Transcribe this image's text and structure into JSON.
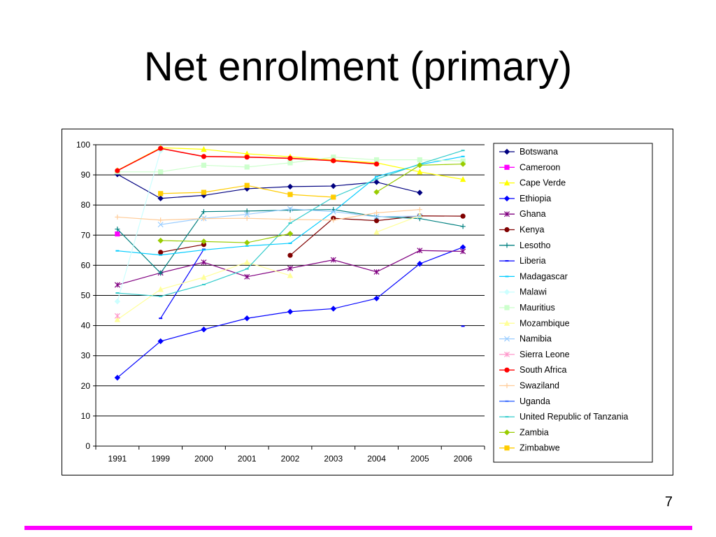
{
  "slide": {
    "title": "Net enrolment (primary)",
    "page_number": "7",
    "footer_color": "#ff00ff"
  },
  "chart_data": {
    "type": "line",
    "title": "",
    "xlabel": "",
    "ylabel": "",
    "ylim": [
      0,
      100
    ],
    "yticks": [
      0,
      10,
      20,
      30,
      40,
      50,
      60,
      70,
      80,
      90,
      100
    ],
    "grid": "horizontal",
    "legend_position": "right",
    "categories": [
      "1991",
      "1999",
      "2000",
      "2001",
      "2002",
      "2003",
      "2004",
      "2005",
      "2006"
    ],
    "series": [
      {
        "name": "Botswana",
        "color": "#000080",
        "marker": "diamond",
        "values": [
          90.2,
          82.2,
          83.2,
          85.4,
          86.1,
          86.3,
          87.6,
          84.1,
          null
        ]
      },
      {
        "name": "Cameroon",
        "color": "#ff00ff",
        "marker": "square",
        "values": [
          70.4,
          null,
          null,
          null,
          null,
          null,
          null,
          null,
          null
        ]
      },
      {
        "name": "Cape Verde",
        "color": "#ffff00",
        "marker": "triangle",
        "values": [
          91.5,
          99.0,
          98.5,
          97.0,
          96.0,
          95.0,
          94.0,
          91.0,
          88.5
        ]
      },
      {
        "name": "Ethiopia",
        "color": "#0000ff",
        "marker": "diamond",
        "values": [
          22.7,
          34.8,
          38.7,
          42.4,
          44.6,
          45.6,
          49.0,
          60.5,
          66.0
        ]
      },
      {
        "name": "Ghana",
        "color": "#800080",
        "marker": "star",
        "values": [
          53.5,
          57.5,
          61.0,
          56.2,
          59.0,
          61.8,
          57.8,
          64.9,
          64.6
        ]
      },
      {
        "name": "Kenya",
        "color": "#800000",
        "marker": "circle",
        "values": [
          null,
          64.3,
          66.9,
          null,
          63.3,
          75.6,
          74.8,
          76.4,
          76.3
        ]
      },
      {
        "name": "Lesotho",
        "color": "#008080",
        "marker": "plus",
        "values": [
          72.0,
          57.4,
          77.8,
          78.0,
          78.3,
          78.5,
          76.2,
          75.5,
          72.9
        ]
      },
      {
        "name": "Liberia",
        "color": "#0000ff",
        "marker": "dash",
        "values": [
          null,
          42.4,
          65.3,
          null,
          null,
          null,
          null,
          null,
          39.8
        ]
      },
      {
        "name": "Madagascar",
        "color": "#00ccff",
        "marker": "dash",
        "values": [
          64.8,
          63.4,
          65.1,
          66.4,
          67.3,
          77.8,
          89.4,
          93.4,
          96.1
        ]
      },
      {
        "name": "Malawi",
        "color": "#ccffff",
        "marker": "diamond",
        "values": [
          48.0,
          98.0,
          null,
          null,
          null,
          null,
          null,
          null,
          null
        ]
      },
      {
        "name": "Mauritius",
        "color": "#ccffcc",
        "marker": "square",
        "values": [
          91.0,
          91.0,
          93.2,
          92.6,
          94.0,
          95.9,
          95.0,
          95.0,
          94.6
        ]
      },
      {
        "name": "Mozambique",
        "color": "#ffff99",
        "marker": "triangle",
        "values": [
          42.0,
          52.0,
          56.0,
          61.0,
          56.6,
          null,
          71.0,
          76.5,
          null
        ]
      },
      {
        "name": "Namibia",
        "color": "#99ccff",
        "marker": "x",
        "values": [
          null,
          73.5,
          75.6,
          76.9,
          78.7,
          77.8,
          76.1,
          76.3,
          null
        ]
      },
      {
        "name": "Sierra Leone",
        "color": "#ff99cc",
        "marker": "star",
        "values": [
          43.2,
          null,
          null,
          null,
          null,
          null,
          null,
          null,
          null
        ]
      },
      {
        "name": "South Africa",
        "color": "#ff0000",
        "marker": "circle",
        "values": [
          91.4,
          98.8,
          96.1,
          95.9,
          95.5,
          94.7,
          93.6,
          null,
          null
        ]
      },
      {
        "name": "Swaziland",
        "color": "#ffcc99",
        "marker": "plus",
        "values": [
          76.0,
          75.0,
          75.5,
          75.6,
          75.2,
          75.0,
          77.4,
          78.5,
          null
        ]
      },
      {
        "name": "Uganda",
        "color": "#3366ff",
        "marker": "dash",
        "values": [
          null,
          null,
          null,
          null,
          null,
          null,
          null,
          null,
          null
        ]
      },
      {
        "name": "United Republic of Tanzania",
        "color": "#33cccc",
        "marker": "dash",
        "values": [
          50.8,
          49.7,
          53.6,
          58.8,
          74.0,
          82.6,
          88.6,
          93.6,
          98.1
        ]
      },
      {
        "name": "Zambia",
        "color": "#99cc00",
        "marker": "diamond",
        "values": [
          null,
          68.2,
          67.9,
          67.5,
          70.5,
          null,
          84.3,
          93.2,
          93.6
        ]
      },
      {
        "name": "Zimbabwe",
        "color": "#ffcc00",
        "marker": "square",
        "values": [
          null,
          83.8,
          84.2,
          86.5,
          83.5,
          82.6,
          null,
          null,
          null
        ]
      }
    ]
  }
}
